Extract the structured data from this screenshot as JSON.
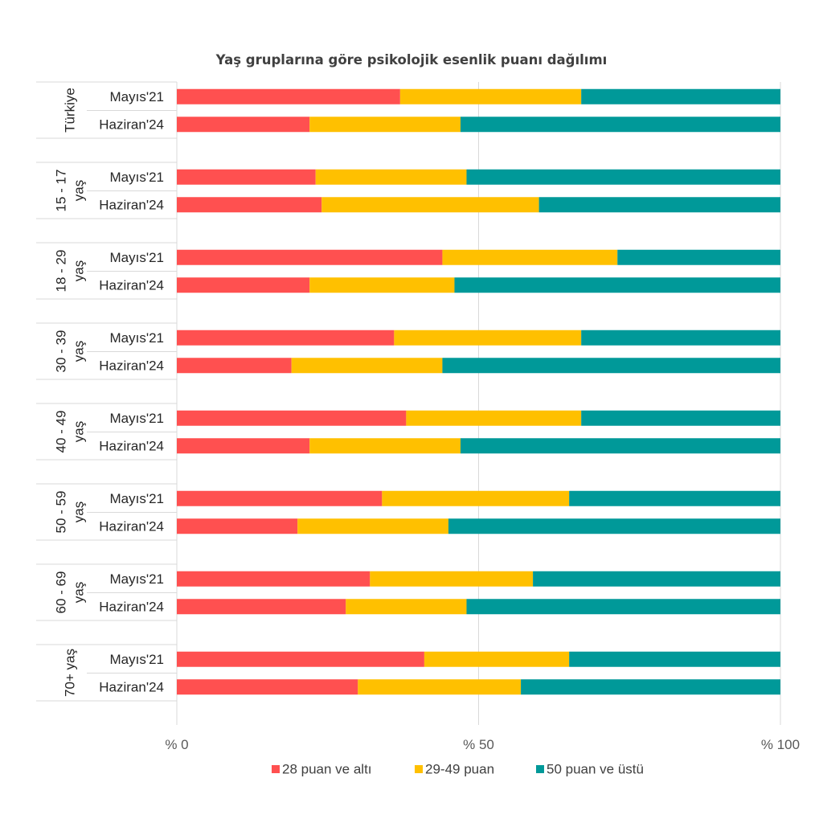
{
  "chart_data": {
    "type": "bar",
    "orientation": "horizontal",
    "stacked": true,
    "title": "Yaş gruplarına göre psikolojik esenlik puanı dağılımı",
    "xlabel": "",
    "ylabel": "",
    "xlim": [
      0,
      100
    ],
    "x_ticks": [
      "% 0",
      "% 50",
      "% 100"
    ],
    "grid": true,
    "legend_position": "bottom",
    "groups": [
      {
        "label": "Türkiye",
        "label_lines": [
          "Türkiye"
        ]
      },
      {
        "label": "15 - 17 yaş",
        "label_lines": [
          "15 - 17",
          "yaş"
        ]
      },
      {
        "label": "18 - 29 yaş",
        "label_lines": [
          "18 - 29",
          "yaş"
        ]
      },
      {
        "label": "30 - 39 yaş",
        "label_lines": [
          "30 - 39",
          "yaş"
        ]
      },
      {
        "label": "40 - 49 yaş",
        "label_lines": [
          "40 - 49",
          "yaş"
        ]
      },
      {
        "label": "50 - 59 yaş",
        "label_lines": [
          "50 - 59",
          "yaş"
        ]
      },
      {
        "label": "60 - 69 yaş",
        "label_lines": [
          "60 - 69",
          "yaş"
        ]
      },
      {
        "label": "70+ yaş",
        "label_lines": [
          "70+ yaş"
        ]
      }
    ],
    "periods": [
      "Mayıs'21",
      "Haziran'24"
    ],
    "series": [
      {
        "name": "28 puan ve altı",
        "color": "#FF5050",
        "values": [
          37,
          22,
          23,
          24,
          44,
          22,
          36,
          19,
          38,
          22,
          34,
          20,
          32,
          28,
          41,
          30
        ]
      },
      {
        "name": "29-49 puan",
        "color": "#FFC000",
        "values": [
          30,
          25,
          25,
          36,
          29,
          24,
          31,
          25,
          29,
          25,
          31,
          25,
          27,
          20,
          24,
          27
        ]
      },
      {
        "name": "50 puan ve üstü",
        "color": "#009999",
        "values": [
          33,
          53,
          52,
          40,
          27,
          54,
          33,
          56,
          33,
          53,
          35,
          55,
          41,
          52,
          35,
          43
        ]
      }
    ],
    "row_order_note": "values follow groups × periods: group0-Mayıs'21, group0-Haziran'24, group1-Mayıs'21, ..."
  }
}
